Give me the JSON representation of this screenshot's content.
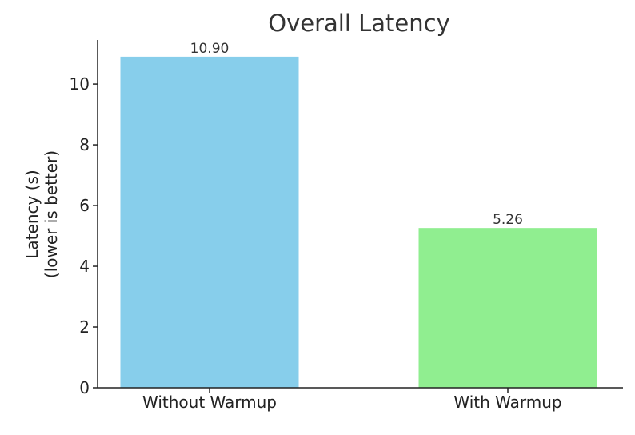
{
  "chart_data": {
    "type": "bar",
    "title": "Overall Latency",
    "ylabel_lines": [
      "Latency (s)",
      "(lower is better)"
    ],
    "categories": [
      "Without Warmup",
      "With Warmup"
    ],
    "values": [
      10.9,
      5.26
    ],
    "value_labels": [
      "10.90",
      "5.26"
    ],
    "colors": [
      "#87ceeb",
      "#90ee90"
    ],
    "ylim": [
      0,
      11.45
    ],
    "yticks": [
      0,
      2,
      4,
      6,
      8,
      10
    ],
    "grid": false,
    "legend": "none"
  }
}
